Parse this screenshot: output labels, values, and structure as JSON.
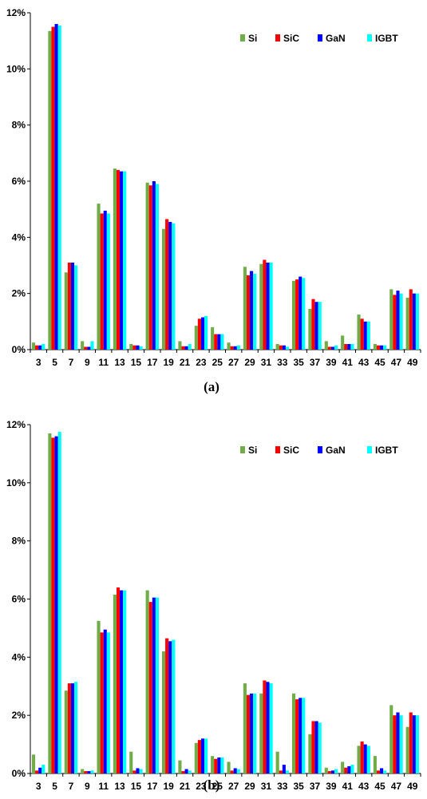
{
  "chart_data": [
    {
      "type": "bar",
      "caption": "(a)",
      "ylim": [
        0,
        12
      ],
      "y_ticks": [
        "0%",
        "2%",
        "4%",
        "6%",
        "8%",
        "10%",
        "12%"
      ],
      "grid": false,
      "legend_position": "top-right",
      "categories": [
        "3",
        "5",
        "7",
        "9",
        "11",
        "13",
        "15",
        "17",
        "19",
        "21",
        "23",
        "25",
        "27",
        "29",
        "31",
        "33",
        "35",
        "37",
        "39",
        "41",
        "43",
        "45",
        "47",
        "49"
      ],
      "series": [
        {
          "name": "Si",
          "color": "#70AD47",
          "values": [
            0.25,
            11.35,
            2.75,
            0.3,
            5.2,
            6.45,
            0.2,
            5.95,
            4.3,
            0.3,
            0.85,
            0.8,
            0.25,
            2.95,
            3.05,
            0.2,
            2.45,
            1.45,
            0.3,
            0.5,
            1.25,
            0.2,
            2.15,
            1.85
          ]
        },
        {
          "name": "SiC",
          "color": "#FF0000",
          "values": [
            0.15,
            11.5,
            3.1,
            0.1,
            4.85,
            6.4,
            0.15,
            5.85,
            4.65,
            0.12,
            1.1,
            0.55,
            0.12,
            2.65,
            3.2,
            0.15,
            2.5,
            1.8,
            0.1,
            0.2,
            1.1,
            0.15,
            1.95,
            2.15
          ]
        },
        {
          "name": "GaN",
          "color": "#0000FF",
          "values": [
            0.15,
            11.6,
            3.1,
            0.1,
            4.95,
            6.35,
            0.15,
            6.0,
            4.55,
            0.12,
            1.15,
            0.55,
            0.12,
            2.8,
            3.1,
            0.15,
            2.6,
            1.7,
            0.1,
            0.2,
            1.0,
            0.15,
            2.1,
            2.0
          ]
        },
        {
          "name": "IGBT",
          "color": "#00FFFF",
          "values": [
            0.2,
            11.55,
            3.0,
            0.3,
            4.85,
            6.35,
            0.12,
            5.9,
            4.5,
            0.2,
            1.2,
            0.55,
            0.15,
            2.7,
            3.1,
            0.1,
            2.55,
            1.7,
            0.15,
            0.2,
            1.0,
            0.15,
            2.0,
            2.0
          ]
        }
      ]
    },
    {
      "type": "bar",
      "caption": "(b)",
      "ylim": [
        0,
        12
      ],
      "y_ticks": [
        "0%",
        "2%",
        "4%",
        "6%",
        "8%",
        "10%",
        "12%"
      ],
      "grid": false,
      "legend_position": "top-right",
      "categories": [
        "3",
        "5",
        "7",
        "9",
        "11",
        "13",
        "15",
        "17",
        "19",
        "21",
        "23",
        "25",
        "27",
        "29",
        "31",
        "33",
        "35",
        "37",
        "39",
        "41",
        "43",
        "45",
        "47",
        "49"
      ],
      "series": [
        {
          "name": "Si",
          "color": "#70AD47",
          "values": [
            0.65,
            11.7,
            2.85,
            0.15,
            5.25,
            6.15,
            0.75,
            6.3,
            4.2,
            0.45,
            1.05,
            0.6,
            0.4,
            3.1,
            2.75,
            0.75,
            2.75,
            1.35,
            0.2,
            0.4,
            0.95,
            0.6,
            2.35,
            1.6
          ]
        },
        {
          "name": "SiC",
          "color": "#FF0000",
          "values": [
            0.1,
            11.55,
            3.1,
            0.08,
            4.85,
            6.4,
            0.1,
            5.9,
            4.65,
            0.08,
            1.15,
            0.5,
            0.1,
            2.7,
            3.2,
            0.1,
            2.55,
            1.8,
            0.08,
            0.2,
            1.1,
            0.1,
            2.0,
            2.1
          ]
        },
        {
          "name": "GaN",
          "color": "#0000FF",
          "values": [
            0.2,
            11.6,
            3.1,
            0.08,
            4.95,
            6.3,
            0.18,
            6.05,
            4.55,
            0.15,
            1.2,
            0.55,
            0.18,
            2.75,
            3.15,
            0.3,
            2.6,
            1.8,
            0.1,
            0.25,
            1.0,
            0.18,
            2.1,
            2.0
          ]
        },
        {
          "name": "IGBT",
          "color": "#00FFFF",
          "values": [
            0.3,
            11.75,
            3.15,
            0.1,
            4.85,
            6.3,
            0.15,
            6.05,
            4.6,
            0.1,
            1.2,
            0.55,
            0.15,
            2.75,
            3.1,
            0.1,
            2.6,
            1.75,
            0.15,
            0.3,
            0.95,
            0.1,
            2.0,
            2.0
          ]
        }
      ]
    }
  ]
}
